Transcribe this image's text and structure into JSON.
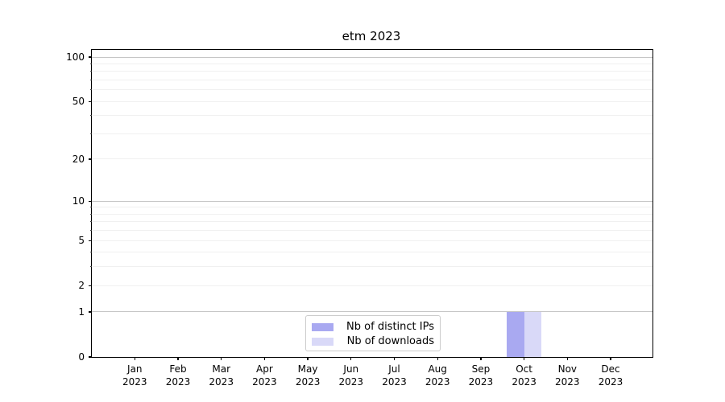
{
  "chart_data": {
    "type": "bar",
    "title": "etm 2023",
    "year": "2023",
    "months": [
      "Jan",
      "Feb",
      "Mar",
      "Apr",
      "May",
      "Jun",
      "Jul",
      "Aug",
      "Sep",
      "Oct",
      "Nov",
      "Dec"
    ],
    "categories": [
      "Jan 2023",
      "Feb 2023",
      "Mar 2023",
      "Apr 2023",
      "May 2023",
      "Jun 2023",
      "Jul 2023",
      "Aug 2023",
      "Sep 2023",
      "Oct 2023",
      "Nov 2023",
      "Dec 2023"
    ],
    "series": [
      {
        "name": "Nb of distinct IPs",
        "color": "#a9a9f1",
        "values": [
          0,
          0,
          0,
          0,
          0,
          0,
          0,
          0,
          0,
          1,
          0,
          0
        ]
      },
      {
        "name": "Nb of downloads",
        "color": "#d9d9f8",
        "values": [
          0,
          0,
          0,
          0,
          0,
          0,
          0,
          0,
          0,
          1,
          0,
          0
        ]
      }
    ],
    "y_axis": {
      "scale": "log1p",
      "ylim": [
        0,
        100
      ],
      "labeled_ticks": [
        0,
        1,
        2,
        5,
        10,
        20,
        50,
        100
      ],
      "major_gridlines": [
        1,
        10,
        100
      ],
      "minor_gridlines": [
        2,
        3,
        4,
        5,
        6,
        7,
        8,
        9,
        20,
        30,
        40,
        50,
        60,
        70,
        80,
        90
      ]
    },
    "grid": true,
    "legend_position": "inside-bottom-center"
  }
}
